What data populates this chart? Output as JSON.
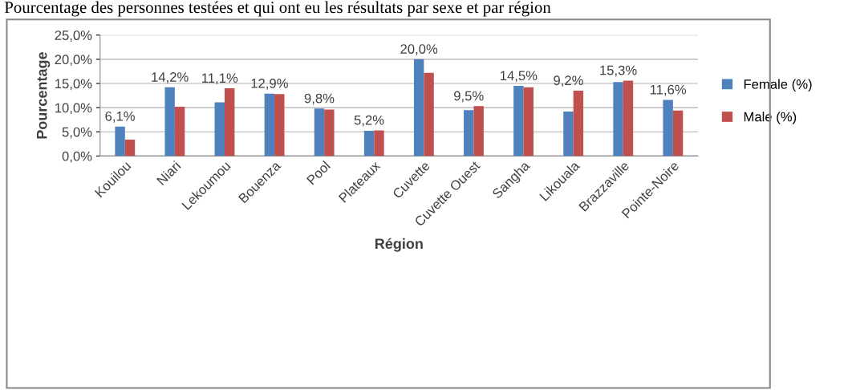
{
  "chart_data": {
    "type": "bar",
    "title": "Pourcentage des personnes testées et qui ont eu les résultats par sexe et par région",
    "xlabel": "Région",
    "ylabel": "Pourcentage",
    "categories": [
      "Kouilou",
      "Niari",
      "Lekoumou",
      "Bouenza",
      "Pool",
      "Plateaux",
      "Cuvette",
      "Cuvette Ouest",
      "Sangha",
      "Likouala",
      "Brazzaville",
      "Pointe-Noire"
    ],
    "series": [
      {
        "name": "Female (%)",
        "color": "#4f81bd",
        "values": [
          6.1,
          14.2,
          11.1,
          12.9,
          9.8,
          5.2,
          20.0,
          9.5,
          14.5,
          9.2,
          15.3,
          11.6
        ],
        "value_labels": [
          "6,1%",
          "14,2%",
          "11,1%",
          "12,9%",
          "9,8%",
          "5,2%",
          "20,0%",
          "9,5%",
          "14,5%",
          "9,2%",
          "15,3%",
          "11,6%"
        ]
      },
      {
        "name": "Male (%)",
        "color": "#c0504d",
        "values": [
          3.4,
          10.2,
          14.0,
          12.8,
          9.6,
          5.3,
          17.2,
          10.3,
          14.2,
          13.5,
          15.6,
          9.4
        ]
      }
    ],
    "ylim": [
      0,
      25
    ],
    "yticks": [
      {
        "value": 0,
        "label": "0,0%"
      },
      {
        "value": 5,
        "label": "5,0%"
      },
      {
        "value": 10,
        "label": "10,0%"
      },
      {
        "value": 15,
        "label": "15,0%"
      },
      {
        "value": 20,
        "label": "20,0%"
      },
      {
        "value": 25,
        "label": "25,0%"
      }
    ],
    "grid": "y",
    "legend": "right"
  }
}
